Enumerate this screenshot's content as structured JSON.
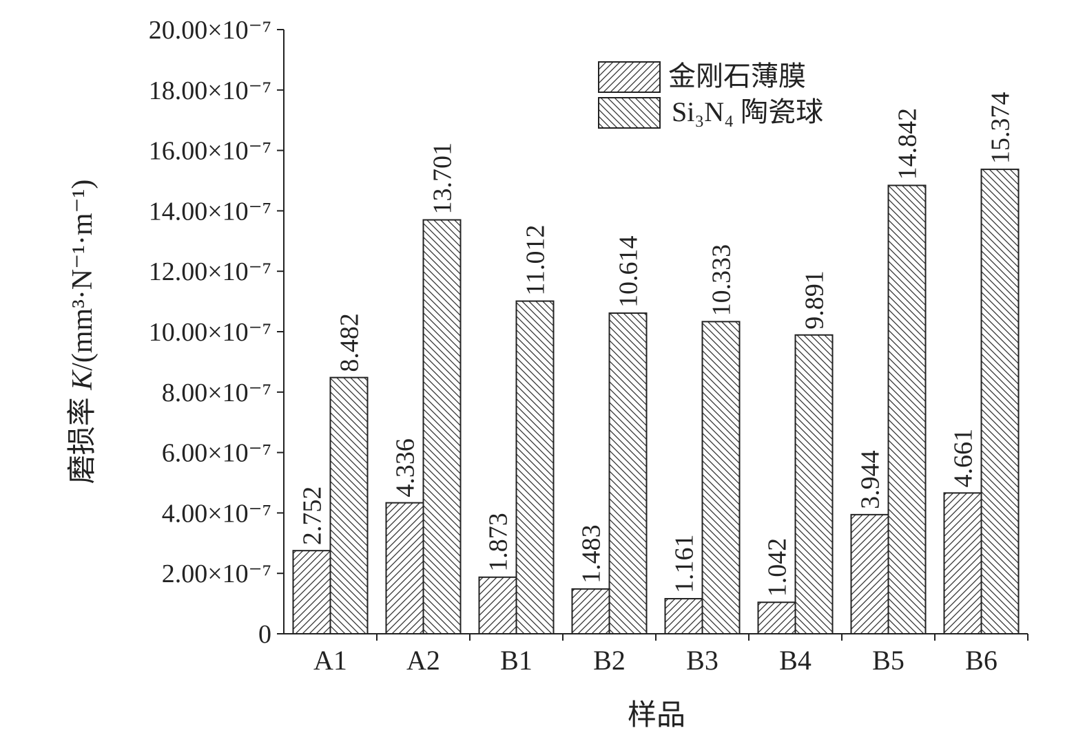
{
  "chart_data": {
    "type": "bar",
    "xlabel": "样品",
    "ylabel_prefix": "磨损率 ",
    "ylabel_var": "K",
    "ylabel_unit": "/(mm³·N⁻¹·m⁻¹)",
    "ylim": [
      0,
      20
    ],
    "y_ticks": [
      0,
      2,
      4,
      6,
      8,
      10,
      12,
      14,
      16,
      18,
      20
    ],
    "y_tick_labels": [
      "0",
      "2.00×10⁻⁷",
      "4.00×10⁻⁷",
      "6.00×10⁻⁷",
      "8.00×10⁻⁷",
      "10.00×10⁻⁷",
      "12.00×10⁻⁷",
      "14.00×10⁻⁷",
      "16.00×10⁻⁷",
      "18.00×10⁻⁷",
      "20.00×10⁻⁷"
    ],
    "categories": [
      "A1",
      "A2",
      "B1",
      "B2",
      "B3",
      "B4",
      "B5",
      "B6"
    ],
    "series": [
      {
        "name": "金刚石薄膜",
        "hatch": "forward-diagonal",
        "values": [
          2.752,
          4.336,
          1.873,
          1.483,
          1.161,
          1.042,
          3.944,
          4.661
        ],
        "labels": [
          "2.752",
          "4.336",
          "1.873",
          "1.483",
          "1.161",
          "1.042",
          "3.944",
          "4.661"
        ]
      },
      {
        "name": "Si₃N₄ 陶瓷球",
        "hatch": "backward-diagonal",
        "values": [
          8.482,
          13.701,
          11.012,
          10.614,
          10.333,
          9.891,
          14.842,
          15.374
        ],
        "labels": [
          "8.482",
          "13.701",
          "11.012",
          "10.614",
          "10.333",
          "9.891",
          "14.842",
          "15.374"
        ]
      }
    ],
    "legend_position": "top-right",
    "grid": false
  }
}
